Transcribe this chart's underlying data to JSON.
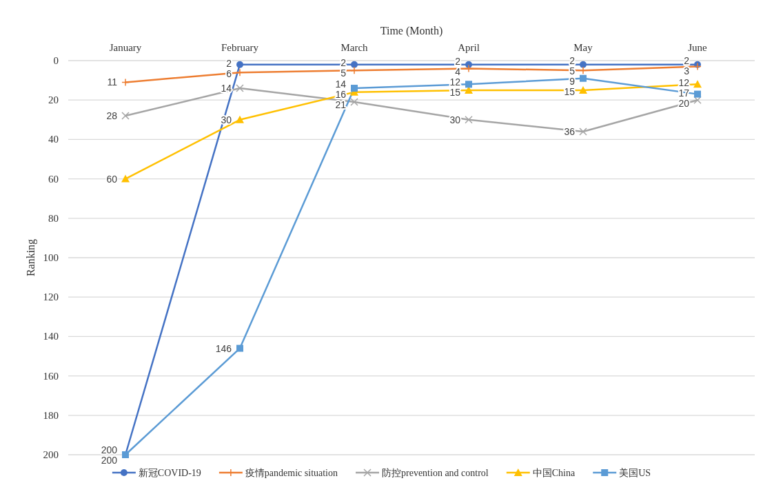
{
  "chart_data": {
    "type": "line",
    "xlabel": "Time (Month)",
    "ylabel": "Ranking",
    "categories": [
      "January",
      "February",
      "March",
      "April",
      "May",
      "June"
    ],
    "series": [
      {
        "name": "新冠COVID-19",
        "color": "#4472c4",
        "marker": "circle",
        "values": [
          200,
          2,
          2,
          2,
          2,
          2
        ]
      },
      {
        "name": "疫情pandemic situation",
        "color": "#ed7d31",
        "marker": "plus",
        "values": [
          11,
          6,
          5,
          4,
          5,
          3
        ]
      },
      {
        "name": "防控prevention and control",
        "color": "#a5a5a5",
        "marker": "cross",
        "values": [
          28,
          14,
          21,
          30,
          36,
          20
        ]
      },
      {
        "name": "中国China",
        "color": "#ffc000",
        "marker": "triangle",
        "values": [
          60,
          30,
          16,
          15,
          15,
          12
        ]
      },
      {
        "name": "美国US",
        "color": "#5b9bd5",
        "marker": "square",
        "values": [
          200,
          146,
          14,
          12,
          9,
          17
        ]
      }
    ],
    "ylim": [
      200,
      0
    ],
    "yticks": [
      0,
      20,
      40,
      60,
      80,
      100,
      120,
      140,
      160,
      180,
      200
    ],
    "grid": "y",
    "legend": "bottom",
    "data_labels": true
  }
}
